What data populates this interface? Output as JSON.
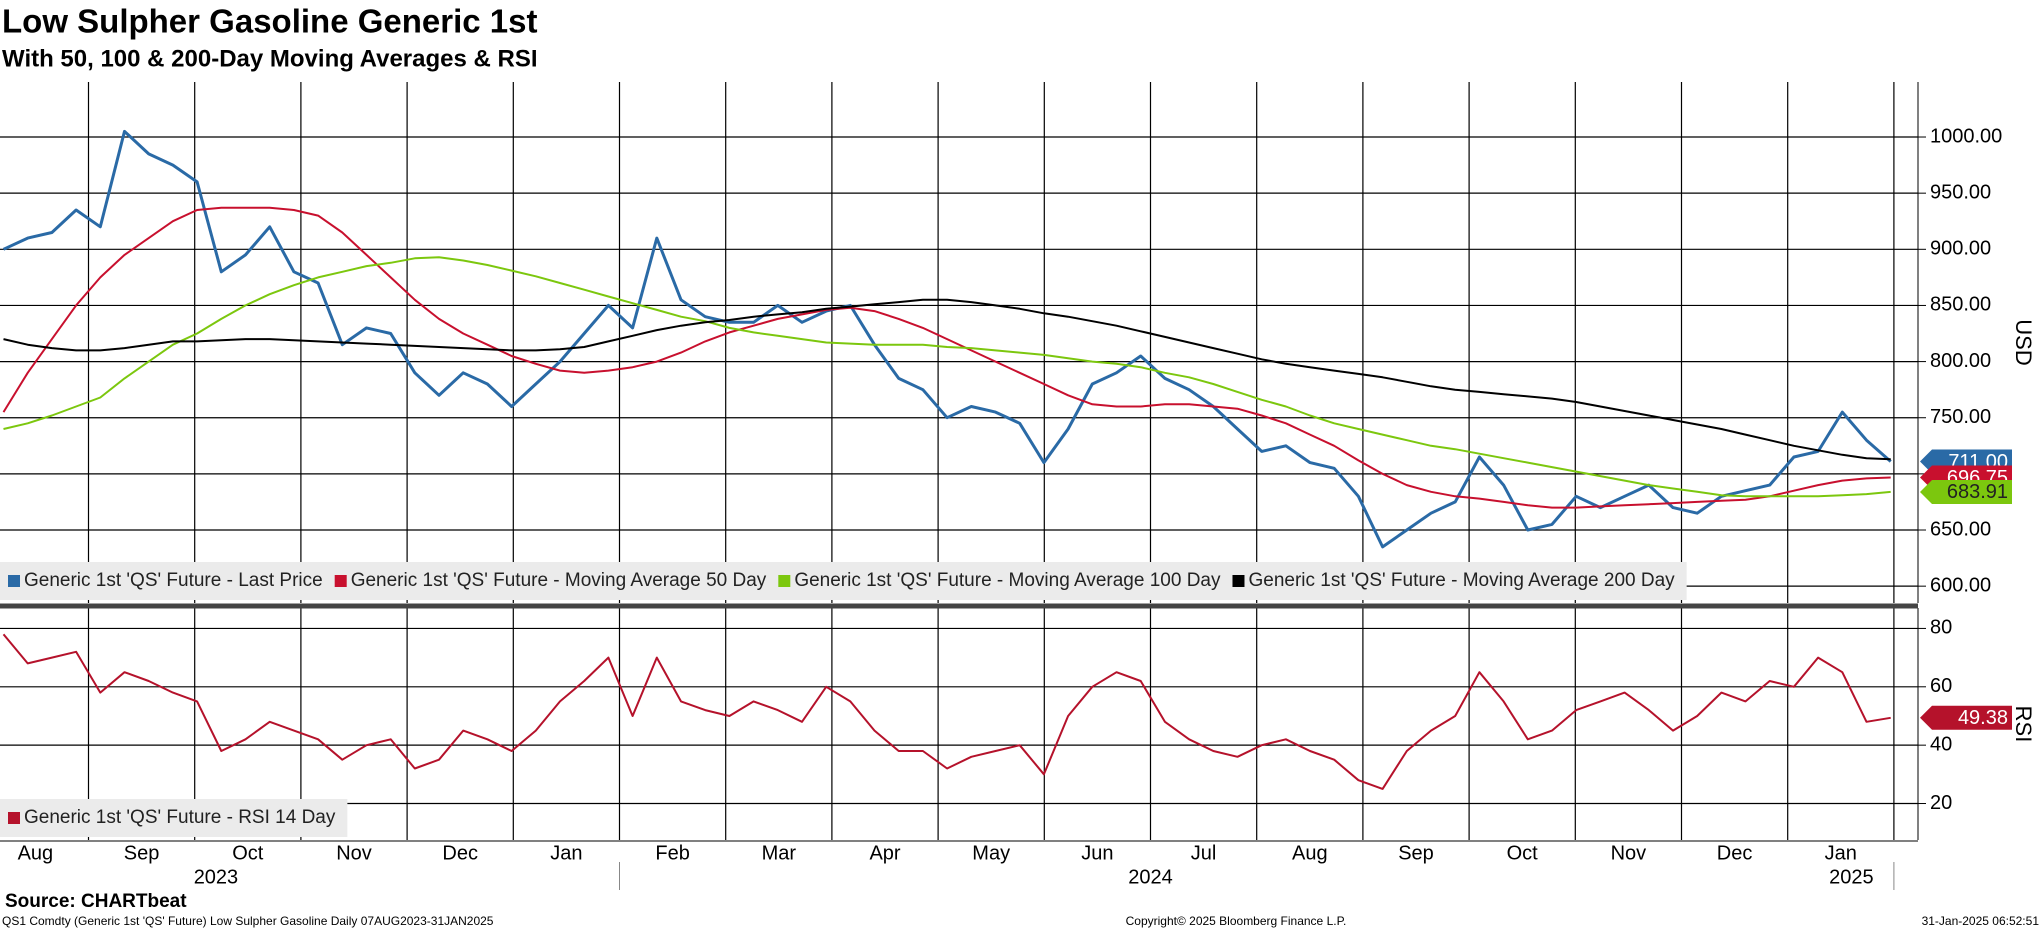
{
  "header": {
    "title": "Low Sulpher Gasoline Generic 1st",
    "subtitle": "With 50, 100 & 200-Day Moving Averages & RSI"
  },
  "source": "Source: CHARTbeat",
  "footer": {
    "left": "QS1 Comdty (Generic 1st 'QS' Future) Low Sulpher Gasoline  Daily 07AUG2023-31JAN2025",
    "center": "Copyright© 2025 Bloomberg Finance L.P.",
    "right": "31-Jan-2025 06:52:51"
  },
  "time_axis": {
    "months": [
      "Aug",
      "Sep",
      "Oct",
      "Nov",
      "Dec",
      "Jan",
      "Feb",
      "Mar",
      "Apr",
      "May",
      "Jun",
      "Jul",
      "Aug",
      "Sep",
      "Oct",
      "Nov",
      "Dec",
      "Jan"
    ],
    "years": [
      "2023",
      "2024",
      "2025"
    ]
  },
  "chart_data": [
    {
      "type": "line",
      "axis_label": "USD",
      "ylim": [
        585,
        1049
      ],
      "yticks": [
        {
          "value": 600,
          "label": "600.00"
        },
        {
          "value": 650,
          "label": "650.00"
        },
        {
          "value": 700,
          "label": "700.00"
        },
        {
          "value": 750,
          "label": "750.00"
        },
        {
          "value": 800,
          "label": "800.00"
        },
        {
          "value": 850,
          "label": "850.00"
        },
        {
          "value": 900,
          "label": "900.00"
        },
        {
          "value": 950,
          "label": "950.00"
        },
        {
          "value": 1000,
          "label": "1000.00"
        }
      ],
      "grid": true,
      "legend": "bottom-left",
      "series": [
        {
          "name": "Generic 1st 'QS' Future - Last Price",
          "color": "#2a6aa6",
          "last_value_label": "711.00",
          "values": [
            900,
            910,
            915,
            935,
            920,
            1005,
            985,
            975,
            960,
            880,
            895,
            920,
            880,
            870,
            815,
            830,
            825,
            790,
            770,
            790,
            780,
            760,
            780,
            800,
            825,
            850,
            830,
            910,
            855,
            840,
            835,
            835,
            850,
            835,
            845,
            850,
            815,
            785,
            775,
            750,
            760,
            755,
            745,
            710,
            740,
            780,
            790,
            805,
            785,
            775,
            760,
            740,
            720,
            725,
            710,
            705,
            680,
            635,
            650,
            665,
            675,
            715,
            690,
            650,
            655,
            680,
            670,
            680,
            690,
            670,
            665,
            680,
            685,
            690,
            715,
            720,
            755,
            730,
            711
          ]
        },
        {
          "name": "Generic 1st 'QS' Future - Moving Average 50 Day",
          "color": "#c8102e",
          "last_value_label": "696.75",
          "values": [
            755,
            790,
            820,
            850,
            875,
            895,
            910,
            925,
            935,
            937,
            937,
            937,
            935,
            930,
            915,
            895,
            875,
            855,
            838,
            825,
            815,
            805,
            798,
            792,
            790,
            792,
            795,
            800,
            808,
            818,
            826,
            832,
            838,
            842,
            846,
            848,
            845,
            838,
            830,
            820,
            810,
            800,
            790,
            780,
            770,
            762,
            760,
            760,
            762,
            762,
            760,
            758,
            752,
            745,
            735,
            725,
            712,
            700,
            690,
            684,
            680,
            678,
            675,
            672,
            670,
            670,
            671,
            672,
            673,
            674,
            675,
            676,
            677,
            680,
            685,
            690,
            694,
            696,
            696.75
          ]
        },
        {
          "name": "Generic 1st 'QS' Future - Moving Average 100 Day",
          "color": "#7cc70e",
          "last_value_label": "683.91",
          "values": [
            740,
            745,
            752,
            760,
            768,
            785,
            800,
            815,
            825,
            838,
            850,
            860,
            868,
            875,
            880,
            885,
            888,
            892,
            893,
            890,
            886,
            881,
            876,
            870,
            864,
            858,
            852,
            846,
            840,
            836,
            830,
            826,
            823,
            820,
            817,
            816,
            815,
            815,
            815,
            813,
            812,
            810,
            808,
            806,
            803,
            800,
            798,
            795,
            790,
            786,
            780,
            773,
            766,
            760,
            752,
            745,
            740,
            735,
            730,
            725,
            722,
            718,
            714,
            710,
            706,
            702,
            698,
            694,
            690,
            687,
            684,
            681,
            680,
            680,
            680,
            680,
            681,
            682,
            683.91
          ]
        },
        {
          "name": "Generic 1st 'QS' Future - Moving Average 200 Day",
          "color": "#000000",
          "values": [
            820,
            815,
            812,
            810,
            810,
            812,
            815,
            818,
            818,
            819,
            820,
            820,
            819,
            818,
            817,
            816,
            815,
            814,
            813,
            812,
            811,
            810,
            810,
            811,
            813,
            818,
            823,
            828,
            832,
            835,
            837,
            840,
            842,
            844,
            847,
            849,
            851,
            853,
            855,
            855,
            853,
            850,
            847,
            843,
            840,
            836,
            832,
            827,
            822,
            817,
            812,
            807,
            802,
            798,
            795,
            792,
            789,
            786,
            782,
            778,
            775,
            773,
            771,
            769,
            767,
            764,
            760,
            756,
            752,
            748,
            744,
            740,
            735,
            730,
            725,
            721,
            717,
            714,
            713
          ]
        }
      ]
    },
    {
      "type": "line",
      "axis_label": "RSI",
      "ylim": [
        7.5,
        87
      ],
      "yticks": [
        20,
        40,
        60,
        80
      ],
      "grid": true,
      "legend": "bottom-left",
      "series": [
        {
          "name": "Generic 1st 'QS' Future - RSI 14 Day",
          "color": "#b5122b",
          "last_value_label": "49.38",
          "values": [
            78,
            68,
            70,
            72,
            58,
            65,
            62,
            58,
            55,
            38,
            42,
            48,
            45,
            42,
            35,
            40,
            42,
            32,
            35,
            45,
            42,
            38,
            45,
            55,
            62,
            70,
            50,
            70,
            55,
            52,
            50,
            55,
            52,
            48,
            60,
            55,
            45,
            38,
            38,
            32,
            36,
            38,
            40,
            30,
            50,
            60,
            65,
            62,
            48,
            42,
            38,
            36,
            40,
            42,
            38,
            35,
            28,
            25,
            38,
            45,
            50,
            65,
            55,
            42,
            45,
            52,
            55,
            58,
            52,
            45,
            50,
            58,
            55,
            62,
            60,
            70,
            65,
            48,
            49.38
          ]
        }
      ]
    }
  ]
}
